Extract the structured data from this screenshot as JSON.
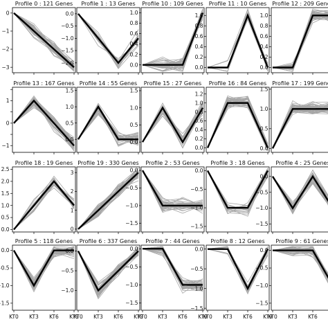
{
  "chart_data": {
    "type": "line",
    "x_categories": [
      "KT0",
      "KT3",
      "KT6",
      "KT9"
    ],
    "colors": {
      "profile": "#000000",
      "genes": "#a6a6a6",
      "frame": "#000000"
    },
    "panels": [
      {
        "title": "Profile 0 : 121 Genes",
        "profile": [
          0,
          -1,
          -2,
          -3
        ],
        "ylim": [
          -3.3,
          0.3
        ],
        "yticks": [
          0,
          -1,
          -2,
          -3
        ],
        "ytick_labels": [
          "0",
          "−1",
          "−2",
          "−3"
        ],
        "show_x": false,
        "genes": {
          "pattern": "decline",
          "n": 40
        }
      },
      {
        "title": "Profile 1 : 13 Genes",
        "profile": [
          0,
          -1,
          -2,
          -1
        ],
        "ylim": [
          -2.4,
          0.25
        ],
        "yticks": [
          0,
          -0.5,
          -1,
          -1.5,
          -2
        ],
        "ytick_labels": [
          "0.0",
          "−0.5",
          "−1.0",
          "−1.5",
          "−2.0"
        ],
        "show_x": false,
        "genes": {
          "pattern": "v",
          "n": 13
        }
      },
      {
        "title": "Profile 10 : 109 Genes",
        "profile": [
          0,
          0,
          0,
          1
        ],
        "ylim": [
          -0.15,
          1.1
        ],
        "yticks": [
          0,
          0.2,
          0.4,
          0.6,
          0.8,
          1.0
        ],
        "ytick_labels": [
          "0.0",
          "0.2",
          "0.4",
          "0.6",
          "0.8",
          "1.0"
        ],
        "show_x": false,
        "genes": {
          "pattern": "flat-rise",
          "n": 40
        }
      },
      {
        "title": "Profile 11 : 10 Genes",
        "profile": [
          0,
          0,
          1,
          0
        ],
        "ylim": [
          -0.1,
          1.15
        ],
        "yticks": [
          0,
          0.2,
          0.4,
          0.6,
          0.8,
          1.0
        ],
        "ytick_labels": [
          "0.0",
          "0.2",
          "0.4",
          "0.6",
          "0.8",
          "1.0"
        ],
        "show_x": false,
        "genes": {
          "pattern": "peak3",
          "n": 10
        }
      },
      {
        "title": "Profile 12 : 209 Genes",
        "profile": [
          0,
          0,
          1,
          1
        ],
        "ylim": [
          -0.1,
          1.15
        ],
        "yticks": [
          0,
          0.2,
          0.4,
          0.6,
          0.8,
          1.0
        ],
        "ytick_labels": [
          "0.0",
          "0.2",
          "0.4",
          "0.6",
          "0.8",
          "1.0"
        ],
        "show_x": false,
        "genes": {
          "pattern": "step",
          "n": 45
        }
      },
      {
        "title": "Profile 13 : 167 Genes",
        "profile": [
          0,
          1,
          0,
          -1
        ],
        "ylim": [
          -1.3,
          1.6
        ],
        "yticks": [
          -1,
          -0.5,
          0,
          0.5,
          1,
          1.5
        ],
        "ytick_labels": [
          "−1",
          "",
          "0",
          "",
          "1",
          ""
        ],
        "show_x": false,
        "genes": {
          "pattern": "peak-decline",
          "n": 40
        }
      },
      {
        "title": "Profile 14 : 55 Genes",
        "profile": [
          0,
          1,
          0,
          0
        ],
        "ylim": [
          -0.4,
          1.6
        ],
        "yticks": [
          0,
          0.5,
          1.0,
          1.5
        ],
        "ytick_labels": [
          "0.0",
          "0.5",
          "1.0",
          "1.5"
        ],
        "show_x": false,
        "genes": {
          "pattern": "peak2",
          "n": 30
        }
      },
      {
        "title": "Profile 15 : 27 Genes",
        "profile": [
          0,
          1,
          0,
          1
        ],
        "ylim": [
          -0.3,
          1.6
        ],
        "yticks": [
          0,
          0.5,
          1.0,
          1.5
        ],
        "ytick_labels": [
          "0.0",
          "0.5",
          "1.0",
          "1.5"
        ],
        "show_x": false,
        "genes": {
          "pattern": "zigzag",
          "n": 27
        }
      },
      {
        "title": "Profile 16 : 84 Genes",
        "profile": [
          0,
          1,
          1,
          0
        ],
        "ylim": [
          -0.1,
          1.35
        ],
        "yticks": [
          0,
          0.2,
          0.4,
          0.6,
          0.8,
          1.0,
          1.2
        ],
        "ytick_labels": [
          "0.0",
          "0.2",
          "0.4",
          "0.6",
          "0.8",
          "1.0",
          "1.2"
        ],
        "show_x": false,
        "genes": {
          "pattern": "plateau",
          "n": 35
        }
      },
      {
        "title": "Profile 17 : 199 Genes",
        "profile": [
          0,
          1,
          1,
          1
        ],
        "ylim": [
          -0.1,
          1.55
        ],
        "yticks": [
          0,
          0.5,
          1.0,
          1.5
        ],
        "ytick_labels": [
          "0.0",
          "0.5",
          "1.0",
          "1.5"
        ],
        "show_x": false,
        "genes": {
          "pattern": "rise-flat",
          "n": 45
        }
      },
      {
        "title": "Profile 18 : 19 Genes",
        "profile": [
          0,
          1,
          2,
          1
        ],
        "ylim": [
          -0.1,
          2.6
        ],
        "yticks": [
          0,
          0.5,
          1.0,
          1.5,
          2.0,
          2.5
        ],
        "ytick_labels": [
          "0.0",
          "0.5",
          "1.0",
          "1.5",
          "2.0",
          "2.5"
        ],
        "show_x": false,
        "genes": {
          "pattern": "rise-peak",
          "n": 19
        }
      },
      {
        "title": "Profile 19 : 330 Genes",
        "profile": [
          0,
          1,
          2,
          3
        ],
        "ylim": [
          -0.15,
          3.3
        ],
        "yticks": [
          0,
          1,
          2,
          3
        ],
        "ytick_labels": [
          "0",
          "1",
          "2",
          "3"
        ],
        "show_x": false,
        "genes": {
          "pattern": "linear",
          "n": 40
        }
      },
      {
        "title": "Profile 2 : 53 Genes",
        "profile": [
          0,
          -1,
          -1,
          -1
        ],
        "ylim": [
          -1.75,
          0.1
        ],
        "yticks": [
          0,
          -0.5,
          -1.0,
          -1.5
        ],
        "ytick_labels": [
          "0.0",
          "−0.5",
          "−1.0",
          "−1.5"
        ],
        "show_x": false,
        "genes": {
          "pattern": "drop-flat",
          "n": 35
        }
      },
      {
        "title": "Profile 3 : 18 Genes",
        "profile": [
          0,
          -1,
          -1,
          0
        ],
        "ylim": [
          -1.65,
          0.1
        ],
        "yticks": [
          0,
          -0.5,
          -1.0,
          -1.5
        ],
        "ytick_labels": [
          "0.0",
          "−0.5",
          "−1.0",
          "−1.5"
        ],
        "show_x": false,
        "genes": {
          "pattern": "trough",
          "n": 18
        }
      },
      {
        "title": "Profile 4 : 25 Genes",
        "profile": [
          0,
          -1,
          0,
          -1
        ],
        "ylim": [
          -1.75,
          0.3
        ],
        "yticks": [
          0,
          -0.5,
          -1.0,
          -1.5
        ],
        "ytick_labels": [
          "0.0",
          "−0.5",
          "−1.0",
          "−1.5"
        ],
        "show_x": false,
        "genes": {
          "pattern": "zigzag-down",
          "n": 25
        }
      },
      {
        "title": "Profile 5 : 118 Genes",
        "profile": [
          0,
          -1,
          0,
          0
        ],
        "ylim": [
          -1.7,
          0.15
        ],
        "yticks": [
          0,
          -0.5,
          -1.0,
          -1.5
        ],
        "ytick_labels": [
          "0.0",
          "−0.5",
          "−1.0",
          "−1.5"
        ],
        "show_x": true,
        "genes": {
          "pattern": "dip2",
          "n": 40
        }
      },
      {
        "title": "Profile 6 : 337 Genes",
        "profile": [
          0,
          -1,
          -0.5,
          0
        ],
        "ylim": [
          -1.5,
          0.15
        ],
        "yticks": [
          0,
          -0.5,
          -1.0
        ],
        "ytick_labels": [
          "0.0",
          "−0.5",
          "−1.0"
        ],
        "show_x": true,
        "genes": {
          "pattern": "dip-recover",
          "n": 45
        }
      },
      {
        "title": "Profile 7 : 44 Genes",
        "profile": [
          0,
          0,
          -1,
          -1
        ],
        "ylim": [
          -1.7,
          0.1
        ],
        "yticks": [
          0,
          -0.5,
          -1.0,
          -1.5
        ],
        "ytick_labels": [
          "0.0",
          "−0.5",
          "−1.0",
          "−1.5"
        ],
        "show_x": true,
        "genes": {
          "pattern": "late-drop",
          "n": 35
        }
      },
      {
        "title": "Profile 8 : 12 Genes",
        "profile": [
          0,
          0,
          -1,
          0
        ],
        "ylim": [
          -1.55,
          0.1
        ],
        "yticks": [
          0,
          -0.5,
          -1.0,
          -1.5
        ],
        "ytick_labels": [
          "0.0",
          "−0.5",
          "−1.0",
          "−1.5"
        ],
        "show_x": true,
        "genes": {
          "pattern": "dip3",
          "n": 12
        }
      },
      {
        "title": "Profile 9 : 61 Genes",
        "profile": [
          0,
          0,
          0,
          -1
        ],
        "ylim": [
          -1.7,
          0.15
        ],
        "yticks": [
          0,
          -0.5,
          -1.0,
          -1.5
        ],
        "ytick_labels": [
          "0.0",
          "−0.5",
          "−1.0",
          "−1.5"
        ],
        "show_x": true,
        "genes": {
          "pattern": "final-drop",
          "n": 35
        }
      }
    ]
  }
}
